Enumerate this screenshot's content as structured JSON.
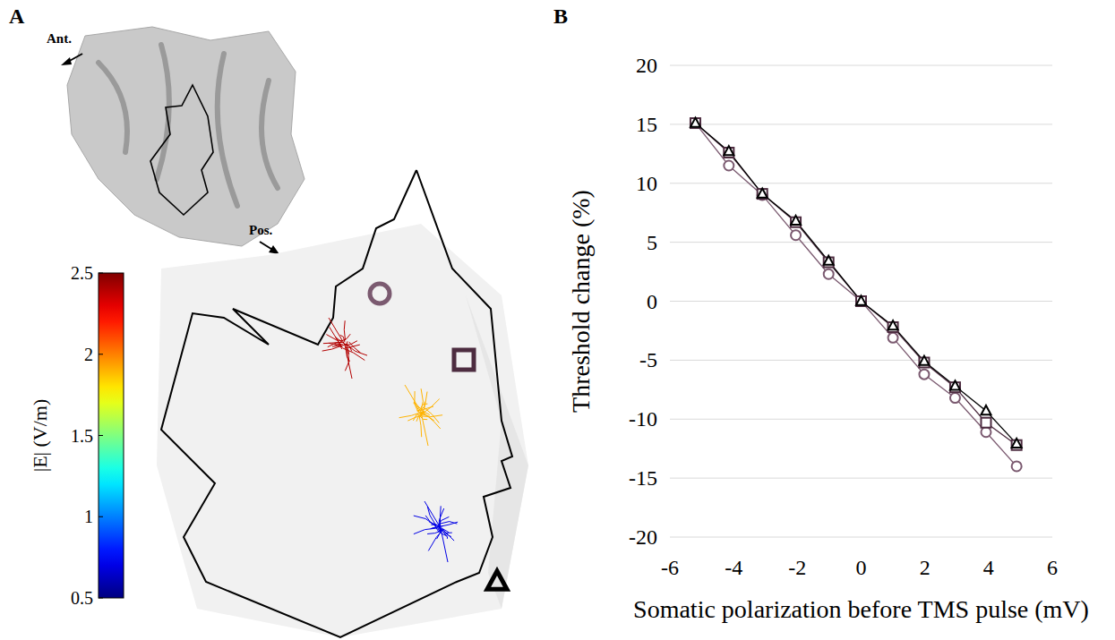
{
  "panel_labels": [
    "A",
    "B"
  ],
  "diagram": {
    "directions": [
      "Ant.",
      "Pos."
    ],
    "colorbar": {
      "label": "|E| (V/m)",
      "range": [
        0.5,
        2.5
      ],
      "ticks": [
        0.5,
        1,
        1.5,
        2,
        2.5
      ]
    },
    "neurons": [
      {
        "marker": "circle",
        "E": 2.4
      },
      {
        "marker": "square",
        "E": 1.9
      },
      {
        "marker": "triangle",
        "E": 0.7
      }
    ]
  },
  "chart_data": {
    "type": "line",
    "x_label": "Somatic polarization before TMS pulse (mV)",
    "y_label": "Threshold change (%)",
    "x": [
      -5.2,
      -4.15,
      -3.1,
      -2.05,
      -1.02,
      0,
      1,
      1.98,
      2.95,
      3.92,
      4.88
    ],
    "series": [
      {
        "marker": "circle",
        "color": "#7b5a70",
        "values": [
          15.1,
          11.5,
          9.0,
          5.6,
          2.3,
          0,
          -3.1,
          -6.2,
          -8.2,
          -11.1,
          -14.0
        ]
      },
      {
        "marker": "square",
        "color": "#4d2c40",
        "values": [
          15.1,
          12.6,
          9.1,
          6.7,
          3.3,
          0,
          -2.2,
          -5.2,
          -7.3,
          -10.3,
          -12.2
        ]
      },
      {
        "marker": "triangle",
        "color": "#000000",
        "values": [
          15.1,
          12.7,
          9.1,
          6.8,
          3.4,
          0,
          -2.1,
          -5.1,
          -7.2,
          -9.3,
          -12.1
        ]
      }
    ],
    "xlim": [
      -6,
      6
    ],
    "xticks": [
      -6,
      -4,
      -2,
      0,
      2,
      4,
      6
    ],
    "ylim": [
      -20,
      20
    ],
    "yticks": [
      -20,
      -15,
      -10,
      -5,
      0,
      5,
      10,
      15,
      20
    ],
    "grid": true
  }
}
